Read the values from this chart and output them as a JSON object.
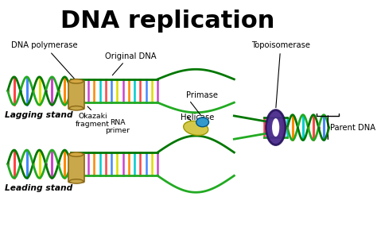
{
  "title": "DNA replication",
  "title_fontsize": 22,
  "title_fontweight": "bold",
  "background_color": "#ffffff",
  "labels": {
    "dna_polymerase": "DNA polymerase",
    "original_dna": "Original DNA",
    "okazaki_fragment": "Okazaki\nfragment",
    "rna_primer": "RNA\nprimer",
    "primase": "Primase",
    "helicase": "Helicase",
    "topoisomerase": "Topoisomerase",
    "parent_dna": "Parent DNA",
    "lagging_stand": "Lagging stand",
    "leading_stand": "Leading stand"
  },
  "colors": {
    "green": "#22aa22",
    "dark_green": "#007700",
    "polymerase_box": "#c8a84b",
    "polymerase_top": "#d4a843",
    "polymerase_edge": "#8B6914",
    "topo_purple": "#4a2b8c",
    "topo_edge": "#2a1560",
    "helicase_yellow": "#d4c84a",
    "helicase_yellow_edge": "#999900",
    "helicase_blue": "#3399cc",
    "helicase_blue_edge": "#005588",
    "rung1": "#ff4444",
    "rung2": "#4488ff",
    "rung3": "#dddd00",
    "rung4": "#cc44cc",
    "rung5": "#ff8800",
    "rung6": "#00cccc"
  }
}
